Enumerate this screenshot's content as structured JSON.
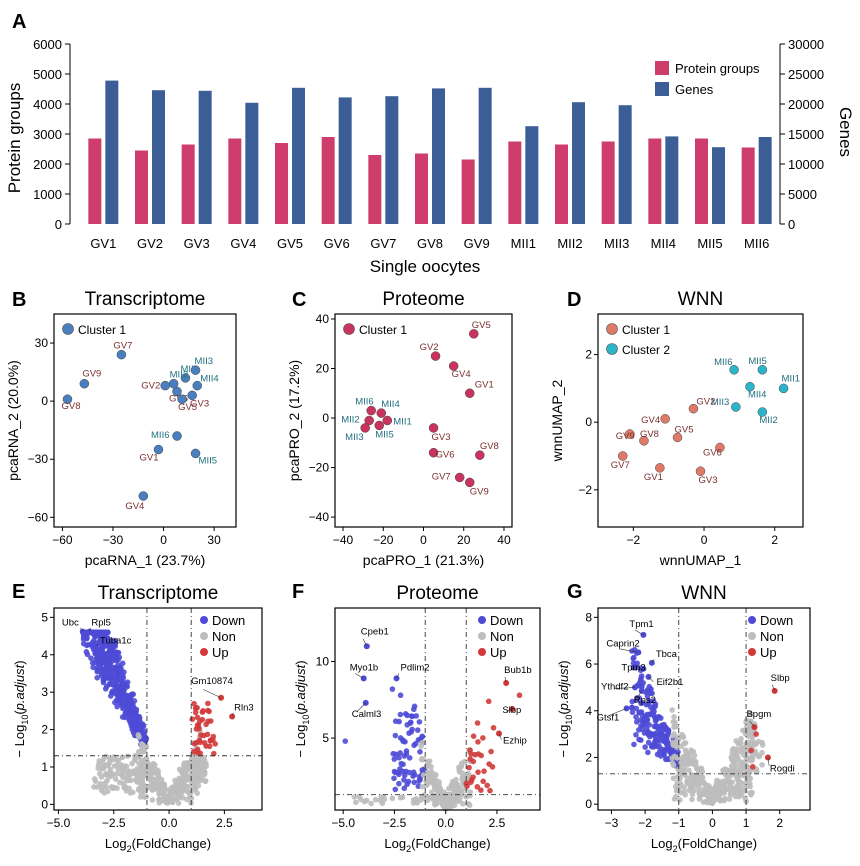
{
  "panel_letters": {
    "A": "A",
    "B": "B",
    "C": "C",
    "D": "D",
    "E": "E",
    "F": "F",
    "G": "G"
  },
  "colors": {
    "protein": "#CE3D6B",
    "genes": "#3C5E96",
    "gv_label": "#7B2E2E",
    "mii_label": "#1F6F7F",
    "cluster_blue": "#4A7FBF",
    "cluster_red": "#C9335E",
    "wnn_c1": "#E07A68",
    "wnn_c2": "#2CB5C9",
    "down": "#4E4BD6",
    "non": "#BDBDBD",
    "up": "#D23A3A",
    "axis": "#000000"
  },
  "chart_data": [
    {
      "id": "A",
      "type": "bar",
      "title": "",
      "xlabel": "Single oocytes",
      "ylabel": "Protein groups",
      "y2label": "Genes",
      "ylim": [
        0,
        6000
      ],
      "y2lim": [
        0,
        30000
      ],
      "yticks": [
        0,
        1000,
        2000,
        3000,
        4000,
        5000,
        6000
      ],
      "y2ticks": [
        0,
        5000,
        10000,
        15000,
        20000,
        25000,
        30000
      ],
      "legend": "top-right",
      "categories": [
        "GV1",
        "GV2",
        "GV3",
        "GV4",
        "GV5",
        "GV6",
        "GV7",
        "GV8",
        "GV9",
        "MII1",
        "MII2",
        "MII3",
        "MII4",
        "MII5",
        "MII6"
      ],
      "series": [
        {
          "name": "Protein groups",
          "axis": "left",
          "values": [
            2850,
            2450,
            2650,
            2850,
            2700,
            2900,
            2300,
            2350,
            2150,
            2750,
            2650,
            2750,
            2850,
            2850,
            2550
          ]
        },
        {
          "name": "Genes",
          "axis": "right",
          "values": [
            23900,
            22300,
            22200,
            20200,
            22700,
            21100,
            21300,
            22600,
            22700,
            16300,
            20300,
            19800,
            14600,
            12800,
            14500
          ]
        }
      ]
    },
    {
      "id": "B",
      "type": "scatter",
      "title": "Transcriptome",
      "xlabel": "pcaRNA_1 (23.7%)",
      "ylabel": "pcaRNA_2 (20.0%)",
      "xlim": [
        -65,
        43
      ],
      "ylim": [
        -65,
        45
      ],
      "xticks": [
        -60,
        -30,
        0,
        30
      ],
      "yticks": [
        -60,
        -30,
        0,
        30
      ],
      "legend": [
        "Cluster 1"
      ],
      "points": [
        {
          "label": "GV7",
          "x": -25,
          "y": 24,
          "cluster": 1,
          "group": "GV",
          "ldx": -8,
          "ldy": -6
        },
        {
          "label": "GV9",
          "x": -47,
          "y": 9,
          "cluster": 1,
          "group": "GV",
          "ldx": -2,
          "ldy": -7
        },
        {
          "label": "GV8",
          "x": -57,
          "y": 1,
          "cluster": 1,
          "group": "GV",
          "ldx": -6,
          "ldy": 10
        },
        {
          "label": "GV2",
          "x": 1,
          "y": 8,
          "cluster": 1,
          "group": "GV",
          "ldx": -24,
          "ldy": 3
        },
        {
          "label": "GV6",
          "x": 8,
          "y": 5,
          "cluster": 1,
          "group": "GV",
          "ldx": -8,
          "ldy": 10
        },
        {
          "label": "GV3",
          "x": 17,
          "y": 3,
          "cluster": 1,
          "group": "GV",
          "ldx": -2,
          "ldy": 11
        },
        {
          "label": "GV5",
          "x": 11,
          "y": 1,
          "cluster": 1,
          "group": "GV",
          "ldx": -4,
          "ldy": 11
        },
        {
          "label": "MII1",
          "x": 13,
          "y": 12,
          "cluster": 1,
          "group": "MII",
          "ldx": -5,
          "ldy": -6
        },
        {
          "label": "MII2",
          "x": 6,
          "y": 9,
          "cluster": 1,
          "group": "MII",
          "ldx": -4,
          "ldy": -6
        },
        {
          "label": "MII3",
          "x": 19,
          "y": 16,
          "cluster": 1,
          "group": "MII",
          "ldx": -1,
          "ldy": -6
        },
        {
          "label": "MII4",
          "x": 20,
          "y": 8,
          "cluster": 1,
          "group": "MII",
          "ldx": 3,
          "ldy": -4
        },
        {
          "label": "MII6",
          "x": 8,
          "y": -18,
          "cluster": 1,
          "group": "MII",
          "ldx": -26,
          "ldy": 2
        },
        {
          "label": "GV1",
          "x": -3,
          "y": -25,
          "cluster": 1,
          "group": "GV",
          "ldx": -19,
          "ldy": 11
        },
        {
          "label": "MII5",
          "x": 19,
          "y": -27,
          "cluster": 1,
          "group": "MII",
          "ldx": 3,
          "ldy": 10
        },
        {
          "label": "GV4",
          "x": -12,
          "y": -49,
          "cluster": 1,
          "group": "GV",
          "ldx": -18,
          "ldy": 13
        }
      ]
    },
    {
      "id": "C",
      "type": "scatter",
      "title": "Proteome",
      "xlabel": "pcaPRO_1 (21.3%)",
      "ylabel": "pcaPRO_2 (17.2%)",
      "xlim": [
        -44,
        44
      ],
      "ylim": [
        -44,
        42
      ],
      "xticks": [
        -40,
        -20,
        0,
        20,
        40
      ],
      "yticks": [
        -40,
        -20,
        0,
        20,
        40
      ],
      "legend": [
        "Cluster 1"
      ],
      "points": [
        {
          "label": "GV5",
          "x": 25,
          "y": 34,
          "cluster": 1,
          "group": "GV",
          "ldx": -2,
          "ldy": -6
        },
        {
          "label": "GV2",
          "x": 6,
          "y": 25,
          "cluster": 1,
          "group": "GV",
          "ldx": -16,
          "ldy": -6
        },
        {
          "label": "GV4",
          "x": 15,
          "y": 21,
          "cluster": 1,
          "group": "GV",
          "ldx": -2,
          "ldy": 11
        },
        {
          "label": "GV1",
          "x": 23,
          "y": 10,
          "cluster": 1,
          "group": "GV",
          "ldx": 5,
          "ldy": -6
        },
        {
          "label": "MII6",
          "x": -26,
          "y": 3,
          "cluster": 1,
          "group": "MII",
          "ldx": -16,
          "ldy": -6
        },
        {
          "label": "MII4",
          "x": -21,
          "y": 2,
          "cluster": 1,
          "group": "MII",
          "ldx": 0,
          "ldy": -6
        },
        {
          "label": "MII2",
          "x": -27,
          "y": -1,
          "cluster": 1,
          "group": "MII",
          "ldx": -28,
          "ldy": 2
        },
        {
          "label": "MII1",
          "x": -18,
          "y": -1,
          "cluster": 1,
          "group": "MII",
          "ldx": 6,
          "ldy": 4
        },
        {
          "label": "MII3",
          "x": -29,
          "y": -4,
          "cluster": 1,
          "group": "MII",
          "ldx": -20,
          "ldy": 12
        },
        {
          "label": "MII5",
          "x": -22,
          "y": -3,
          "cluster": 1,
          "group": "MII",
          "ldx": -4,
          "ldy": 12
        },
        {
          "label": "GV3",
          "x": 5,
          "y": -4,
          "cluster": 1,
          "group": "GV",
          "ldx": -2,
          "ldy": 12
        },
        {
          "label": "GV6",
          "x": 5,
          "y": -14,
          "cluster": 1,
          "group": "GV",
          "ldx": 2,
          "ldy": 5
        },
        {
          "label": "GV8",
          "x": 28,
          "y": -15,
          "cluster": 1,
          "group": "GV",
          "ldx": 0,
          "ldy": -6
        },
        {
          "label": "GV7",
          "x": 18,
          "y": -24,
          "cluster": 1,
          "group": "GV",
          "ldx": -28,
          "ldy": 2
        },
        {
          "label": "GV9",
          "x": 23,
          "y": -26,
          "cluster": 1,
          "group": "GV",
          "ldx": 0,
          "ldy": 12
        }
      ]
    },
    {
      "id": "D",
      "type": "scatter",
      "title": "WNN",
      "xlabel": "wnnUMAP_1",
      "ylabel": "wnnUMAP_2",
      "xlim": [
        -3.0,
        2.8
      ],
      "ylim": [
        -3.1,
        3.2
      ],
      "xticks": [
        -2,
        0,
        2
      ],
      "yticks": [
        -2,
        0,
        2
      ],
      "legend": [
        "Cluster 1",
        "Cluster 2"
      ],
      "points": [
        {
          "label": "MII6",
          "x": 0.85,
          "y": 1.55,
          "cluster": 2,
          "group": "MII",
          "ldx": -20,
          "ldy": -5
        },
        {
          "label": "MII5",
          "x": 1.65,
          "y": 1.55,
          "cluster": 2,
          "group": "MII",
          "ldx": -14,
          "ldy": -6
        },
        {
          "label": "MII1",
          "x": 2.25,
          "y": 1.0,
          "cluster": 2,
          "group": "MII",
          "ldx": -2,
          "ldy": -7
        },
        {
          "label": "MII4",
          "x": 1.3,
          "y": 1.05,
          "cluster": 2,
          "group": "MII",
          "ldx": -2,
          "ldy": 11
        },
        {
          "label": "MII3",
          "x": 0.9,
          "y": 0.45,
          "cluster": 2,
          "group": "MII",
          "ldx": -25,
          "ldy": -2
        },
        {
          "label": "MII2",
          "x": 1.65,
          "y": 0.3,
          "cluster": 2,
          "group": "MII",
          "ldx": -3,
          "ldy": 11
        },
        {
          "label": "GV2",
          "x": -0.3,
          "y": 0.4,
          "cluster": 1,
          "group": "GV",
          "ldx": 3,
          "ldy": -4
        },
        {
          "label": "GV4",
          "x": -1.1,
          "y": 0.1,
          "cluster": 1,
          "group": "GV",
          "ldx": -24,
          "ldy": 4
        },
        {
          "label": "GV9",
          "x": -2.1,
          "y": -0.35,
          "cluster": 1,
          "group": "GV",
          "ldx": -14,
          "ldy": 5
        },
        {
          "label": "GV8",
          "x": -1.7,
          "y": -0.55,
          "cluster": 1,
          "group": "GV",
          "ldx": -4,
          "ldy": -4
        },
        {
          "label": "GV5",
          "x": -0.75,
          "y": -0.45,
          "cluster": 1,
          "group": "GV",
          "ldx": -3,
          "ldy": -5
        },
        {
          "label": "GV6",
          "x": 0.45,
          "y": -0.75,
          "cluster": 1,
          "group": "GV",
          "ldx": -17,
          "ldy": 8
        },
        {
          "label": "GV7",
          "x": -2.3,
          "y": -1.0,
          "cluster": 1,
          "group": "GV",
          "ldx": -12,
          "ldy": 12
        },
        {
          "label": "GV1",
          "x": -1.25,
          "y": -1.35,
          "cluster": 1,
          "group": "GV",
          "ldx": -16,
          "ldy": 12
        },
        {
          "label": "GV3",
          "x": -0.1,
          "y": -1.45,
          "cluster": 1,
          "group": "GV",
          "ldx": -2,
          "ldy": 12
        }
      ]
    },
    {
      "id": "E",
      "type": "scatter",
      "title": "Transcriptome",
      "xlabel": "Log2(FoldChange)",
      "ylabel": "−Log10(p.adjust)",
      "xlim": [
        -5.2,
        4.2
      ],
      "ylim": [
        -0.15,
        5.25
      ],
      "xticks": [
        -5.0,
        -2.5,
        0.0,
        2.5
      ],
      "yticks": [
        0,
        1,
        2,
        3,
        4,
        5
      ],
      "vlines": [
        -1,
        1
      ],
      "hline": 1.3,
      "legend": [
        "Down",
        "Non",
        "Up"
      ],
      "labeled_points": [
        {
          "label": "Ubc",
          "x": -3.9,
          "y": 4.62,
          "class": "Down"
        },
        {
          "label": "Rpl5",
          "x": -3.6,
          "y": 4.62,
          "class": "Down"
        },
        {
          "label": "Tuba1c",
          "x": -3.3,
          "y": 4.25,
          "class": "Down"
        },
        {
          "label": "Gm10874",
          "x": 2.35,
          "y": 2.85,
          "class": "Up"
        },
        {
          "label": "Rln3",
          "x": 2.85,
          "y": 2.35,
          "class": "Up"
        }
      ]
    },
    {
      "id": "F",
      "type": "scatter",
      "title": "Proteome",
      "xlabel": "Log2(FoldChange)",
      "ylabel": "−Log10(p.adjust)",
      "xlim": [
        -5.4,
        4.6
      ],
      "ylim": [
        0.3,
        13.5
      ],
      "xticks": [
        -5.0,
        -2.5,
        0.0,
        2.5
      ],
      "yticks": [
        5,
        10
      ],
      "vlines": [
        -1,
        1
      ],
      "hline": 1.3,
      "legend": [
        "Down",
        "Non",
        "Up"
      ],
      "labeled_points": [
        {
          "label": "Cpeb1",
          "x": -3.85,
          "y": 11.0,
          "class": "Down"
        },
        {
          "label": "Myo1b",
          "x": -4.0,
          "y": 8.9,
          "class": "Down"
        },
        {
          "label": "Pdlim2",
          "x": -2.4,
          "y": 8.9,
          "class": "Down"
        },
        {
          "label": "Calml3",
          "x": -3.9,
          "y": 7.3,
          "class": "Down"
        },
        {
          "label": "Bub1b",
          "x": 2.95,
          "y": 8.6,
          "class": "Up"
        },
        {
          "label": "Slbp",
          "x": 3.25,
          "y": 6.9,
          "class": "Up"
        },
        {
          "label": "Ezhip",
          "x": 2.6,
          "y": 5.3,
          "class": "Up"
        }
      ]
    },
    {
      "id": "G",
      "type": "scatter",
      "title": "WNN",
      "xlabel": "Log2(FoldChange)",
      "ylabel": "−Log10(p.adjust)",
      "xlim": [
        -3.4,
        2.9
      ],
      "ylim": [
        -0.25,
        8.4
      ],
      "xticks": [
        -3,
        -2,
        -1,
        0,
        1,
        2
      ],
      "yticks": [
        0,
        2,
        4,
        6,
        8
      ],
      "vlines": [
        -1,
        1
      ],
      "hline": 1.3,
      "legend": [
        "Down",
        "Non",
        "Up"
      ],
      "labeled_points": [
        {
          "label": "Tpm1",
          "x": -2.05,
          "y": 7.25,
          "class": "Down"
        },
        {
          "label": "Caprin2",
          "x": -2.2,
          "y": 6.5,
          "class": "Down"
        },
        {
          "label": "Tbca",
          "x": -1.8,
          "y": 6.05,
          "class": "Down"
        },
        {
          "label": "Tpm3",
          "x": -2.05,
          "y": 5.8,
          "class": "Down"
        },
        {
          "label": "Eif2b1",
          "x": -1.9,
          "y": 5.45,
          "class": "Down"
        },
        {
          "label": "Ythdf2",
          "x": -2.3,
          "y": 5.0,
          "class": "Down"
        },
        {
          "label": "Rps2",
          "x": -2.1,
          "y": 4.85,
          "class": "Down"
        },
        {
          "label": "Gtsf1",
          "x": -2.55,
          "y": 4.1,
          "class": "Down"
        },
        {
          "label": "Slbp",
          "x": 1.85,
          "y": 4.85,
          "class": "Up"
        },
        {
          "label": "Bpgm",
          "x": 1.25,
          "y": 3.3,
          "class": "Up"
        },
        {
          "label": "Rogdi",
          "x": 1.65,
          "y": 2.0,
          "class": "Up"
        }
      ]
    }
  ]
}
